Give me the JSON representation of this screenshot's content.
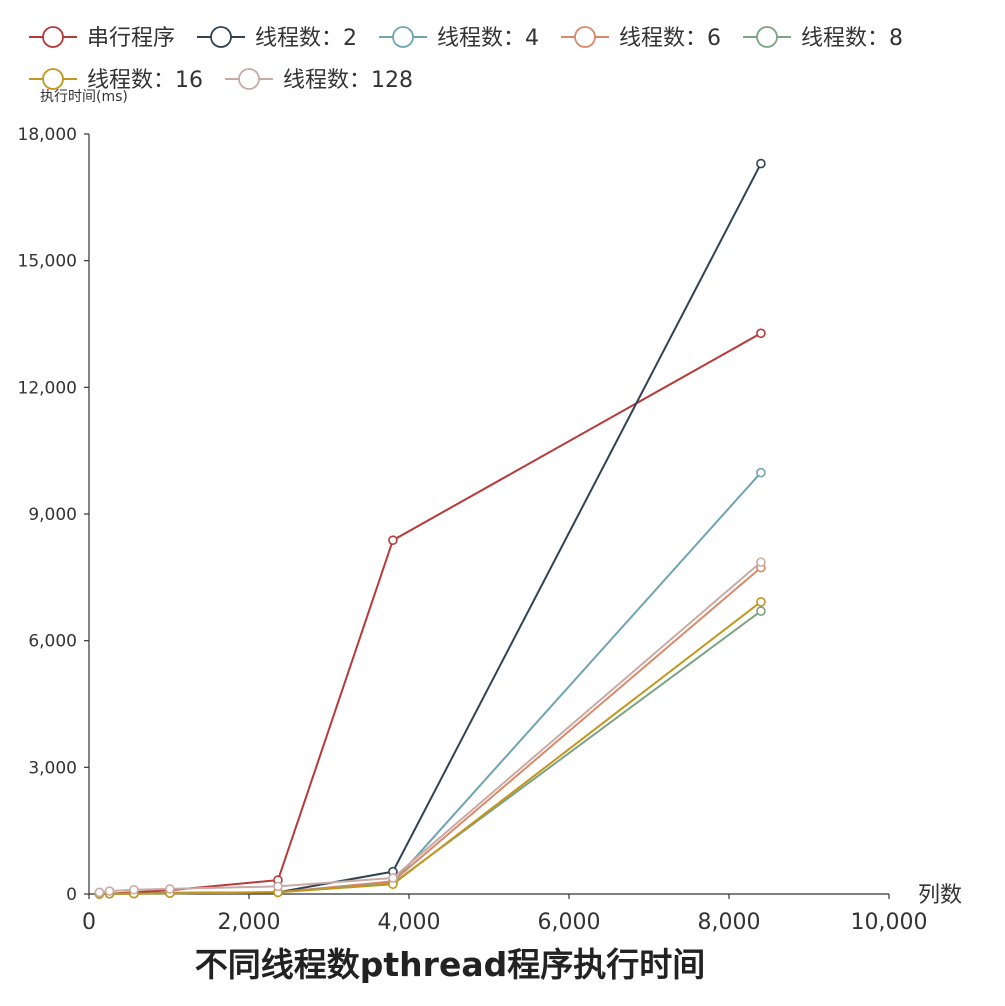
{
  "chart_data": {
    "type": "line",
    "title": "不同线程数pthread程序执行时间",
    "xlabel": "列数",
    "ylabel": "执行时间(ms)",
    "xlim": [
      0,
      10000
    ],
    "ylim": [
      0,
      18000
    ],
    "x_ticks": [
      0,
      2000,
      4000,
      6000,
      8000,
      10000
    ],
    "x_tick_labels": [
      "0",
      "2,000",
      "4,000",
      "6,000",
      "8,000",
      "10,000"
    ],
    "y_ticks": [
      0,
      3000,
      6000,
      9000,
      12000,
      15000,
      18000
    ],
    "y_tick_labels": [
      "0",
      "3,000",
      "6,000",
      "9,000",
      "12,000",
      "15,000",
      "18,000"
    ],
    "grid": false,
    "legend_position": "top-left",
    "x": [
      130,
      256,
      562,
      1011,
      2362,
      3799,
      8399
    ],
    "series": [
      {
        "name": "串行程序",
        "color": "#b8393a",
        "values": [
          2,
          10,
          40,
          90,
          330,
          8380,
          13280
        ]
      },
      {
        "name": "线程数：2",
        "color": "#304254",
        "values": [
          2,
          5,
          10,
          25,
          40,
          530,
          17300
        ]
      },
      {
        "name": "线程数：4",
        "color": "#6fa5b0",
        "values": [
          2,
          5,
          10,
          20,
          40,
          270,
          9980
        ]
      },
      {
        "name": "线程数：6",
        "color": "#da896a",
        "values": [
          2,
          5,
          10,
          20,
          40,
          300,
          7730
        ]
      },
      {
        "name": "线程数：8",
        "color": "#7ba384",
        "values": [
          2,
          5,
          10,
          20,
          40,
          250,
          6700
        ]
      },
      {
        "name": "线程数：16",
        "color": "#c4961e",
        "values": [
          2,
          5,
          10,
          20,
          40,
          230,
          6920
        ]
      },
      {
        "name": "线程数：128",
        "color": "#c9aba6",
        "values": [
          40,
          70,
          100,
          120,
          180,
          380,
          7860
        ]
      }
    ]
  }
}
